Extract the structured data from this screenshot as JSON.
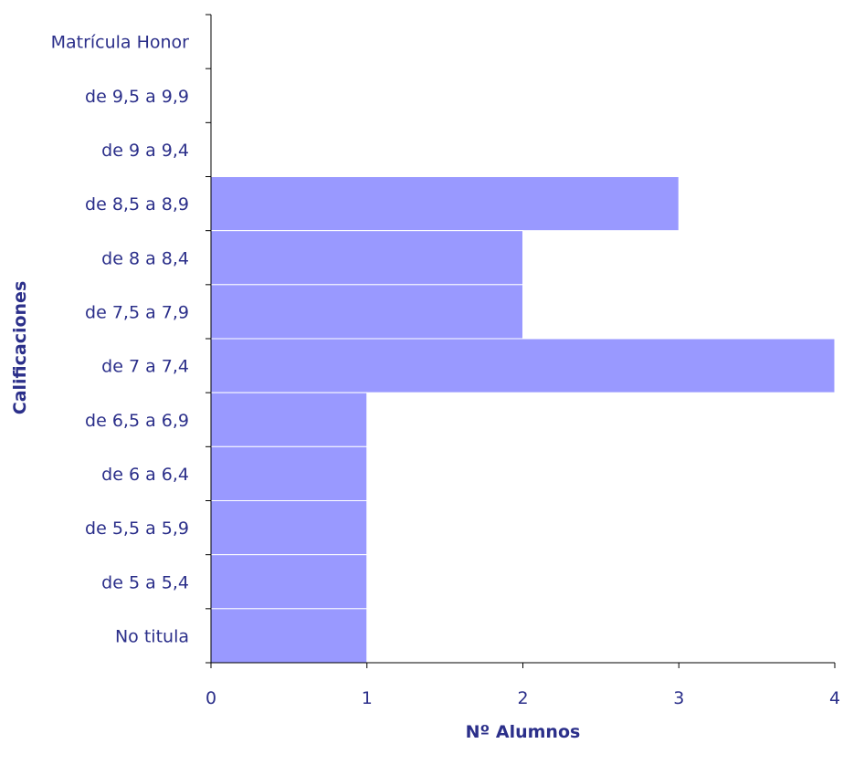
{
  "chart_data": {
    "type": "bar",
    "orientation": "horizontal",
    "title": "",
    "xlabel": "Nº Alumnos",
    "ylabel": "Calificaciones",
    "categories": [
      "Matrícula Honor",
      "de 9,5 a 9,9",
      "de 9 a 9,4",
      "de 8,5 a 8,9",
      "de 8 a 8,4",
      "de 7,5 a 7,9",
      "de 7 a 7,4",
      "de 6,5 a 6,9",
      "de 6 a 6,4",
      "de 5,5 a 5,9",
      "de 5 a 5,4",
      "No titula"
    ],
    "values": [
      0,
      0,
      0,
      3,
      2,
      2,
      4,
      1,
      1,
      1,
      1,
      1
    ],
    "xlim": [
      0,
      4
    ],
    "xticks": [
      "0",
      "1",
      "2",
      "3",
      "4"
    ],
    "grid": false,
    "legend": "none",
    "colors": {
      "bar": "#9999ff",
      "bar_edge": "#ffffff",
      "axis": "#000000",
      "text": "#2b2f8a"
    }
  }
}
